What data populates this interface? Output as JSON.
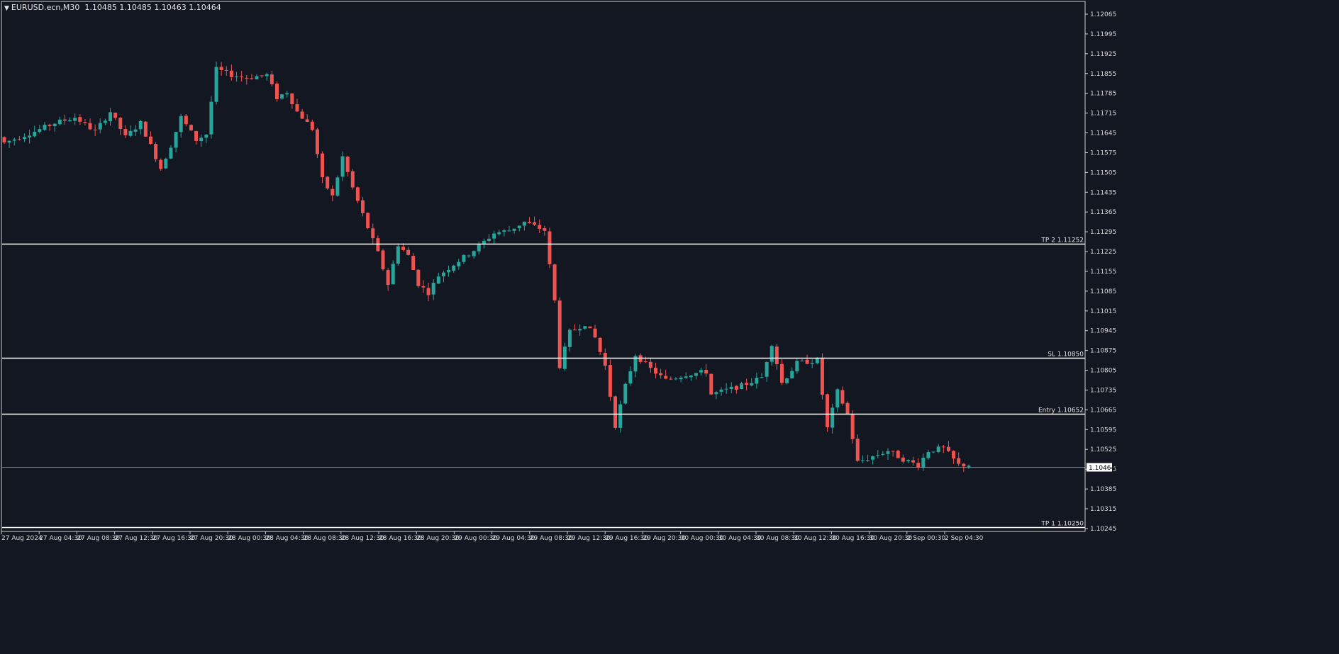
{
  "header": {
    "symbol_label": "EURUSD.ecn,M30",
    "ohlc_text": "1.10485 1.10485 1.10463 1.10464",
    "dropdown_icon": "triangle-down-icon"
  },
  "colors": {
    "background": "#131722",
    "bull": "#26a69a",
    "bear": "#ef5350",
    "line": "#ffffff",
    "axis_text": "#dcdcdc"
  },
  "chart_data": {
    "type": "candlestick",
    "title": "",
    "symbol": "EURUSD.ecn",
    "timeframe": "M30",
    "y_axis": {
      "side": "right",
      "range": [
        1.10215,
        1.121
      ],
      "ticks": [
        "1.12065",
        "1.11995",
        "1.11925",
        "1.11855",
        "1.11785",
        "1.11715",
        "1.11645",
        "1.11575",
        "1.11505",
        "1.11435",
        "1.11365",
        "1.11295",
        "1.11225",
        "1.11155",
        "1.11085",
        "1.11015",
        "1.10945",
        "1.10875",
        "1.10805",
        "1.10735",
        "1.10665",
        "1.10595",
        "1.10525",
        "1.10455",
        "1.10385",
        "1.10315",
        "1.10245"
      ]
    },
    "x_axis": {
      "ticks": [
        "27 Aug 2024",
        "27 Aug 04:30",
        "27 Aug 08:30",
        "27 Aug 12:30",
        "27 Aug 16:30",
        "27 Aug 20:30",
        "28 Aug 00:30",
        "28 Aug 04:30",
        "28 Aug 08:30",
        "28 Aug 12:30",
        "28 Aug 16:30",
        "28 Aug 20:30",
        "29 Aug 00:30",
        "29 Aug 04:30",
        "29 Aug 08:30",
        "29 Aug 12:30",
        "29 Aug 16:30",
        "29 Aug 20:30",
        "30 Aug 00:30",
        "30 Aug 04:30",
        "30 Aug 08:30",
        "30 Aug 12:30",
        "30 Aug 16:30",
        "30 Aug 20:30",
        "2 Sep 00:30",
        "2 Sep 04:30"
      ]
    },
    "current_price": {
      "value": 1.10464,
      "label": "1.10464"
    },
    "levels": [
      {
        "name": "TP 2",
        "value": 1.11252,
        "label": "TP 2 1.11252"
      },
      {
        "name": "SL",
        "value": 1.1085,
        "label": "SL 1.10850"
      },
      {
        "name": "Entry",
        "value": 1.10652,
        "label": "Entry 1.10652"
      },
      {
        "name": "TP 1",
        "value": 1.1025,
        "label": "TP 1 1.10250"
      }
    ],
    "anchors": [
      [
        0,
        1.1161
      ],
      [
        6,
        1.1165
      ],
      [
        10,
        1.1168
      ],
      [
        14,
        1.117
      ],
      [
        18,
        1.1165
      ],
      [
        21,
        1.1172
      ],
      [
        24,
        1.1163
      ],
      [
        27,
        1.1168
      ],
      [
        30,
        1.1156
      ],
      [
        31,
        1.1152
      ],
      [
        33,
        1.116
      ],
      [
        35,
        1.117
      ],
      [
        38,
        1.1162
      ],
      [
        40,
        1.1164
      ],
      [
        42,
        1.1187
      ],
      [
        45,
        1.1185
      ],
      [
        48,
        1.1184
      ],
      [
        52,
        1.1185
      ],
      [
        54,
        1.1177
      ],
      [
        56,
        1.1179
      ],
      [
        58,
        1.1172
      ],
      [
        61,
        1.1166
      ],
      [
        63,
        1.1148
      ],
      [
        65,
        1.1142
      ],
      [
        67,
        1.1156
      ],
      [
        69,
        1.1145
      ],
      [
        72,
        1.1131
      ],
      [
        74,
        1.1122
      ],
      [
        76,
        1.1111
      ],
      [
        78,
        1.1125
      ],
      [
        80,
        1.1121
      ],
      [
        82,
        1.1111
      ],
      [
        84,
        1.1108
      ],
      [
        86,
        1.1114
      ],
      [
        89,
        1.1118
      ],
      [
        93,
        1.1123
      ],
      [
        97,
        1.1129
      ],
      [
        100,
        1.113
      ],
      [
        103,
        1.1133
      ],
      [
        107,
        1.113
      ],
      [
        109,
        1.1105
      ],
      [
        110,
        1.1082
      ],
      [
        112,
        1.1094
      ],
      [
        115,
        1.1097
      ],
      [
        117,
        1.1092
      ],
      [
        119,
        1.1082
      ],
      [
        121,
        1.1061
      ],
      [
        123,
        1.1075
      ],
      [
        125,
        1.1086
      ],
      [
        128,
        1.1081
      ],
      [
        131,
        1.1077
      ],
      [
        135,
        1.1079
      ],
      [
        139,
        1.108
      ],
      [
        140,
        1.1072
      ],
      [
        142,
        1.1073
      ],
      [
        146,
        1.1075
      ],
      [
        150,
        1.1078
      ],
      [
        152,
        1.109
      ],
      [
        154,
        1.1076
      ],
      [
        157,
        1.1083
      ],
      [
        161,
        1.1084
      ],
      [
        163,
        1.106
      ],
      [
        165,
        1.1073
      ],
      [
        167,
        1.1065
      ],
      [
        169,
        1.1048
      ],
      [
        172,
        1.105
      ],
      [
        175,
        1.1052
      ],
      [
        178,
        1.1049
      ],
      [
        181,
        1.1047
      ],
      [
        183,
        1.1052
      ],
      [
        186,
        1.1053
      ],
      [
        189,
        1.1047
      ],
      [
        191,
        1.1047
      ]
    ],
    "n_candles": 192
  }
}
